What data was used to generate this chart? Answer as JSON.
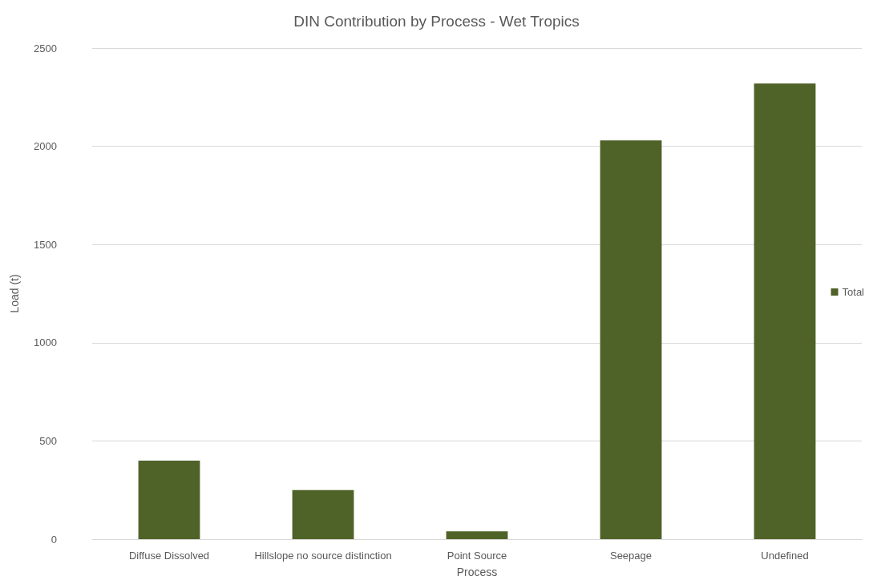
{
  "chart_data": {
    "type": "bar",
    "title": "DIN Contribution by Process - Wet Tropics",
    "xlabel": "Process",
    "ylabel": "Load (t)",
    "categories": [
      "Diffuse Dissolved",
      "Hillslope no source distinction",
      "Point Source",
      "Seepage",
      "Undefined"
    ],
    "series": [
      {
        "name": "Total",
        "color": "#4f6228",
        "values": [
          400,
          250,
          40,
          2030,
          2320
        ]
      }
    ],
    "ylim": [
      0,
      2500
    ],
    "yticks": [
      0,
      500,
      1000,
      1500,
      2000,
      2500
    ],
    "grid": "y",
    "legend": "right"
  }
}
